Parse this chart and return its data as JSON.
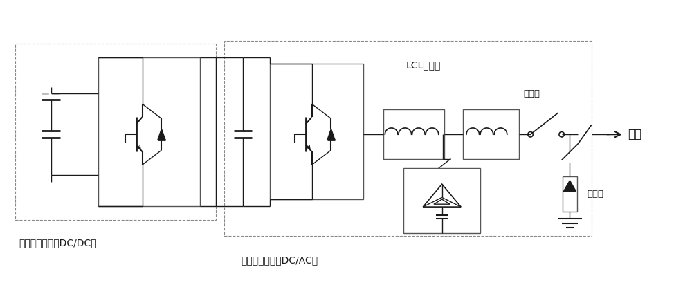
{
  "bg_color": "#ffffff",
  "line_color": "#1a1a1a",
  "dashed_color": "#888888",
  "label_dc_dc": "虚拟同步发电机DC/DC侧",
  "label_dc_ac": "虚拟同步发电机DC/AC侧",
  "label_lcl": "LCL滤波器",
  "label_breaker": "断路器",
  "label_grid": "电网",
  "label_surge": "防雷器",
  "figsize": [
    10.0,
    4.12
  ],
  "dpi": 100
}
